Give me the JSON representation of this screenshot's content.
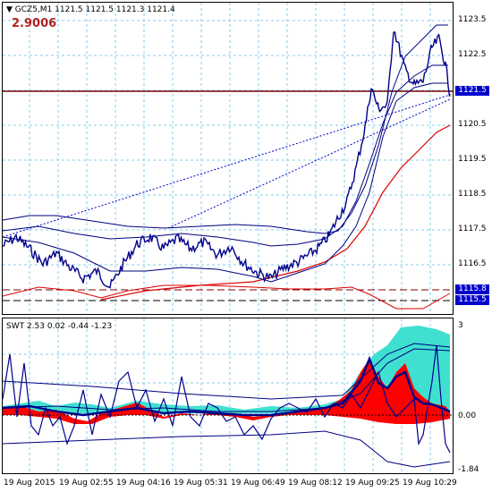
{
  "header": {
    "symbol_line": "GCZ5,M1  1121.5  1121.5  1121.3  1121.4",
    "big_value": "2.9006",
    "indicator_line": "SWT 2.53  0.02  -0.44  -1.23"
  },
  "price_axis": {
    "labels": [
      "1123.5",
      "1122.5",
      "1121.5",
      "1120.5",
      "1119.5",
      "1118.5",
      "1117.5",
      "1116.5",
      "1115.5"
    ],
    "current_tag": "1121.5",
    "tag_upper": "1115.8",
    "tag_lower": "1115.5"
  },
  "sub_axis": {
    "labels": [
      "3",
      "0.00",
      "-1.84"
    ]
  },
  "time_axis": {
    "labels": [
      "19 Aug 2015",
      "19 Aug 02:55",
      "19 Aug 04:16",
      "19 Aug 05:31",
      "19 Aug 06:49",
      "19 Aug 08:12",
      "19 Aug 09:25",
      "19 Aug 10:29"
    ]
  },
  "colors": {
    "price_line": "#00008b",
    "channel_line": "#000080",
    "ma_line": "#dd0000",
    "hline": "#800000",
    "tag_bg": "#0000cd",
    "grid": "#87ceeb",
    "cyan_fill": "#40e0d0",
    "red_fill": "#ff0000"
  }
}
